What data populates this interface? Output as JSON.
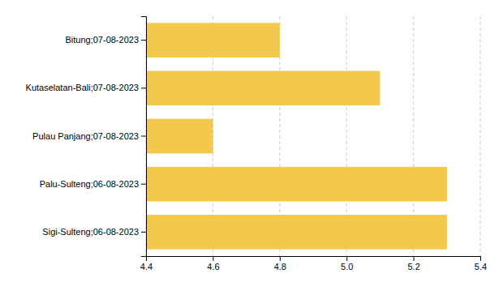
{
  "chart_data": {
    "type": "bar",
    "orientation": "horizontal",
    "categories": [
      "Sigi-Sulteng;06-08-2023",
      "Palu-Sulteng;06-08-2023",
      "Pulau Panjang;07-08-2023",
      "Kutaselatan-Bali;07-08-2023",
      "Bitung;07-08-2023"
    ],
    "values": [
      5.3,
      5.3,
      4.6,
      5.1,
      4.8
    ],
    "color": "#F2C94C",
    "xlim": [
      4.4,
      5.4
    ],
    "xticks": [
      4.4,
      4.6,
      4.8,
      {
        "value": 5.0,
        "label": "5.0"
      },
      5.2,
      5.4
    ],
    "grid": true
  }
}
